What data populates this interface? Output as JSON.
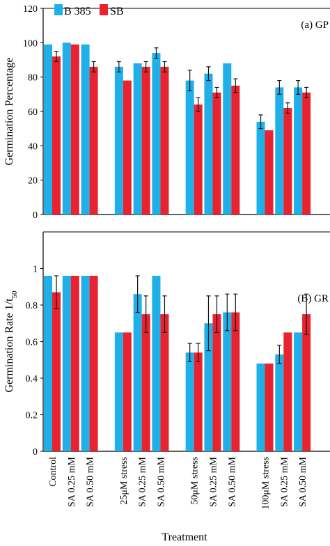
{
  "legend": [
    {
      "name": "B 385",
      "color": "#1fb0e8"
    },
    {
      "name": "SB",
      "color": "#e8232f"
    }
  ],
  "x_axis_title": "Treatment",
  "chart_data": [
    {
      "type": "bar",
      "panel_label": "(a) GP",
      "ylabel": "Germination Percentage",
      "ylim": [
        0,
        120
      ],
      "yticks": [
        "0",
        "20",
        "40",
        "60",
        "80",
        "100",
        "120"
      ],
      "categories": [
        "Control",
        "SA 0.25 mM",
        "SA 0.50 mM",
        "25μM stress",
        "SA 0.25 mM",
        "SA 0.50 mM",
        "50μM stress",
        "SA 0.25 mM",
        "SA 0.50 mM",
        "100μM stress",
        "SA 0.25 mM",
        "SA 0.50 mM"
      ],
      "series": [
        {
          "name": "B 385",
          "values": [
            99,
            100,
            99,
            86,
            88,
            94,
            78,
            82,
            88,
            54,
            74,
            74
          ],
          "errors": [
            0,
            0,
            0,
            3,
            0,
            3,
            6,
            4,
            0,
            4,
            4,
            4
          ]
        },
        {
          "name": "SB",
          "values": [
            92,
            99,
            86,
            78,
            86,
            86,
            64,
            71,
            75,
            49,
            62,
            71
          ],
          "errors": [
            3,
            0,
            3,
            0,
            3,
            3,
            4,
            3,
            4,
            0,
            3,
            3
          ]
        }
      ]
    },
    {
      "type": "bar",
      "panel_label": "(B) GR",
      "ylabel": "Germination Rate 1/t",
      "ylabel_sub": "50",
      "ylim": [
        0,
        1.2
      ],
      "yticks": [
        "0",
        "0.2",
        "0.4",
        "0.6",
        "0.8",
        "1"
      ],
      "categories": [
        "Control",
        "SA 0.25 mM",
        "SA 0.50 mM",
        "25μM stress",
        "SA 0.25 mM",
        "SA 0.50 mM",
        "50μM stress",
        "SA 0.25 mM",
        "SA 0.50 mM",
        "100μM stress",
        "SA 0.25 mM",
        "SA 0.50 mM"
      ],
      "series": [
        {
          "name": "B 385",
          "values": [
            0.96,
            0.96,
            0.96,
            0.65,
            0.86,
            0.96,
            0.54,
            0.7,
            0.76,
            0.48,
            0.53,
            0.65
          ],
          "errors": [
            0,
            0,
            0,
            0,
            0.1,
            0,
            0.05,
            0.15,
            0.1,
            0,
            0.05,
            0
          ]
        },
        {
          "name": "SB",
          "values": [
            0.87,
            0.96,
            0.96,
            0.65,
            0.75,
            0.75,
            0.54,
            0.75,
            0.76,
            0.48,
            0.65,
            0.75
          ],
          "errors": [
            0.09,
            0,
            0,
            0,
            0.1,
            0.1,
            0.05,
            0.1,
            0.1,
            0,
            0,
            0.11
          ]
        }
      ]
    }
  ]
}
